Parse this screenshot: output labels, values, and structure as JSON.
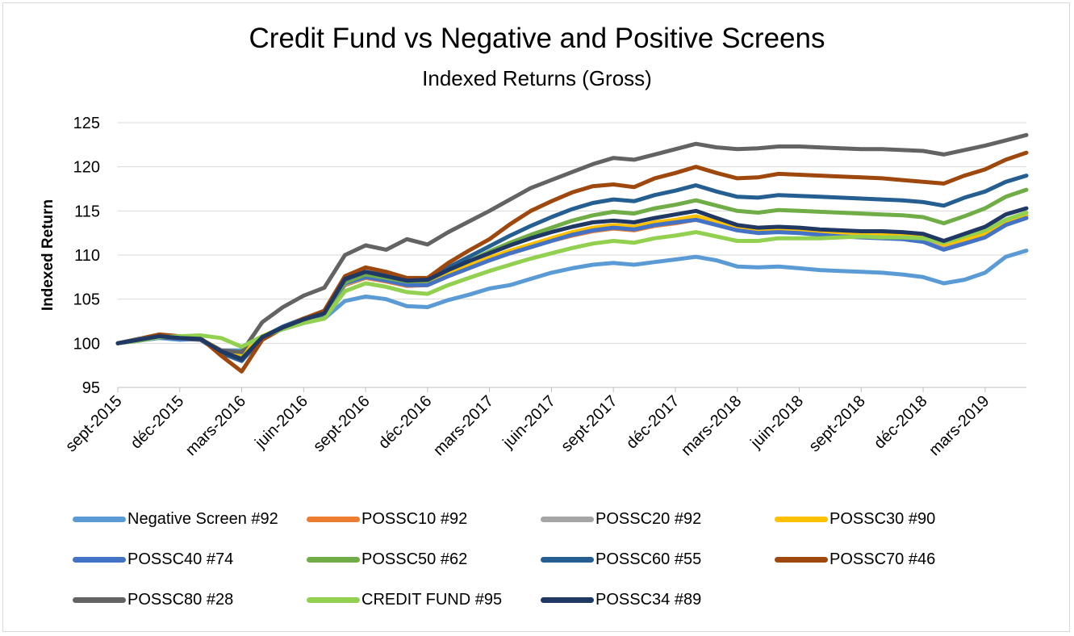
{
  "chart_data": {
    "type": "line",
    "title": "Credit Fund vs Negative and Positive Screens",
    "subtitle": "Indexed Returns (Gross)",
    "ylabel": "Indexed Return",
    "xlabel": "",
    "ylim": [
      95,
      125
    ],
    "yticks": [
      95,
      100,
      105,
      110,
      115,
      120,
      125
    ],
    "grid": true,
    "legend_position": "bottom",
    "x_tick_labels": [
      "sept-2015",
      "déc-2015",
      "mars-2016",
      "juin-2016",
      "sept-2016",
      "déc-2016",
      "mars-2017",
      "juin-2017",
      "sept-2017",
      "déc-2017",
      "mars-2018",
      "juin-2018",
      "sept-2018",
      "déc-2018",
      "mars-2019"
    ],
    "x": [
      "sept-2015",
      "oct-2015",
      "nov-2015",
      "déc-2015",
      "janv-2016",
      "févr-2016",
      "mars-2016",
      "avr-2016",
      "mai-2016",
      "juin-2016",
      "juil-2016",
      "août-2016",
      "sept-2016",
      "oct-2016",
      "nov-2016",
      "déc-2016",
      "janv-2017",
      "févr-2017",
      "mars-2017",
      "avr-2017",
      "mai-2017",
      "juin-2017",
      "juil-2017",
      "août-2017",
      "sept-2017",
      "oct-2017",
      "nov-2017",
      "déc-2017",
      "janv-2018",
      "févr-2018",
      "mars-2018",
      "avr-2018",
      "mai-2018",
      "juin-2018",
      "juil-2018",
      "août-2018",
      "sept-2018",
      "oct-2018",
      "nov-2018",
      "déc-2018",
      "janv-2019",
      "févr-2019",
      "mars-2019",
      "avr-2019",
      "mai-2019"
    ],
    "series": [
      {
        "name": "Negative Screen #92",
        "color": "#5b9bd5",
        "values": [
          100,
          100.3,
          100.6,
          100.4,
          100.5,
          99.2,
          99.2,
          100.8,
          101.6,
          102.3,
          102.8,
          104.8,
          105.3,
          105.0,
          104.2,
          104.1,
          104.9,
          105.5,
          106.2,
          106.6,
          107.3,
          108.0,
          108.5,
          108.9,
          109.1,
          108.9,
          109.2,
          109.5,
          109.8,
          109.4,
          108.7,
          108.6,
          108.7,
          108.5,
          108.3,
          108.2,
          108.1,
          108.0,
          107.8,
          107.5,
          106.8,
          107.2,
          108.0,
          109.8,
          110.5
        ]
      },
      {
        "name": "POSSC10 #92",
        "color": "#ed7d31",
        "values": [
          100,
          100.4,
          100.8,
          100.6,
          100.5,
          99.2,
          98.6,
          100.7,
          101.7,
          102.5,
          103.2,
          106.6,
          107.4,
          107.0,
          106.5,
          106.6,
          107.6,
          108.5,
          109.4,
          110.2,
          110.9,
          111.6,
          112.2,
          112.7,
          113.0,
          112.8,
          113.3,
          113.6,
          114.0,
          113.5,
          112.9,
          112.6,
          112.8,
          112.7,
          112.5,
          112.4,
          112.3,
          112.2,
          112.1,
          111.9,
          111.0,
          111.6,
          112.2,
          113.5,
          114.2
        ]
      },
      {
        "name": "POSSC20 #92",
        "color": "#a5a5a5",
        "values": [
          100,
          100.4,
          100.8,
          100.6,
          100.5,
          99.2,
          98.7,
          100.7,
          101.7,
          102.6,
          103.3,
          106.7,
          107.5,
          107.1,
          106.6,
          106.7,
          107.7,
          108.6,
          109.5,
          110.3,
          111.0,
          111.7,
          112.4,
          112.9,
          113.2,
          113.0,
          113.5,
          113.8,
          114.2,
          113.6,
          113.0,
          112.7,
          112.9,
          112.8,
          112.6,
          112.5,
          112.4,
          112.3,
          112.2,
          112.0,
          111.1,
          111.7,
          112.3,
          113.6,
          114.3
        ]
      },
      {
        "name": "POSSC30 #90",
        "color": "#ffc000",
        "values": [
          100,
          100.4,
          100.8,
          100.6,
          100.5,
          99.2,
          98.7,
          100.8,
          101.8,
          102.6,
          103.3,
          106.8,
          107.6,
          107.2,
          106.7,
          106.8,
          107.8,
          108.8,
          109.7,
          110.5,
          111.2,
          111.9,
          112.6,
          113.1,
          113.4,
          113.2,
          113.7,
          114.0,
          114.4,
          113.8,
          113.1,
          112.8,
          113.0,
          112.9,
          112.7,
          112.6,
          112.5,
          112.4,
          112.3,
          112.1,
          111.2,
          111.8,
          112.4,
          113.8,
          114.5
        ]
      },
      {
        "name": "POSSC40 #74",
        "color": "#4472c4",
        "values": [
          100,
          100.3,
          100.7,
          100.5,
          100.4,
          98.9,
          98.0,
          100.6,
          101.7,
          102.6,
          103.3,
          106.8,
          107.5,
          107.1,
          106.6,
          106.6,
          107.6,
          108.5,
          109.4,
          110.2,
          110.9,
          111.6,
          112.3,
          112.8,
          113.1,
          112.9,
          113.4,
          113.7,
          114.0,
          113.4,
          112.8,
          112.5,
          112.6,
          112.5,
          112.3,
          112.1,
          112.0,
          111.9,
          111.8,
          111.5,
          110.6,
          111.3,
          112.0,
          113.4,
          114.2
        ]
      },
      {
        "name": "POSSC50 #62",
        "color": "#70ad47",
        "values": [
          100,
          100.4,
          100.8,
          100.6,
          100.5,
          99.0,
          98.3,
          100.7,
          101.8,
          102.7,
          103.4,
          106.9,
          107.8,
          107.4,
          107.0,
          107.1,
          108.3,
          109.3,
          110.4,
          111.4,
          112.3,
          113.1,
          113.9,
          114.5,
          114.9,
          114.7,
          115.3,
          115.7,
          116.2,
          115.6,
          115.0,
          114.8,
          115.1,
          115.0,
          114.9,
          114.8,
          114.7,
          114.6,
          114.5,
          114.3,
          113.6,
          114.4,
          115.3,
          116.6,
          117.4
        ]
      },
      {
        "name": "POSSC60 #55",
        "color": "#255e91",
        "values": [
          100,
          100.4,
          100.8,
          100.6,
          100.5,
          98.9,
          98.0,
          100.7,
          101.9,
          102.8,
          103.5,
          107.2,
          108.1,
          107.7,
          107.2,
          107.2,
          108.6,
          109.8,
          111.0,
          112.2,
          113.3,
          114.3,
          115.2,
          115.9,
          116.3,
          116.1,
          116.8,
          117.3,
          117.9,
          117.2,
          116.6,
          116.5,
          116.8,
          116.7,
          116.6,
          116.5,
          116.4,
          116.3,
          116.2,
          116.0,
          115.6,
          116.5,
          117.2,
          118.3,
          119.0
        ]
      },
      {
        "name": "POSSC70 #46",
        "color": "#9e480e",
        "values": [
          100,
          100.5,
          101.0,
          100.8,
          100.6,
          98.6,
          96.8,
          100.4,
          101.7,
          102.8,
          103.7,
          107.6,
          108.6,
          108.1,
          107.4,
          107.4,
          109.1,
          110.5,
          111.8,
          113.5,
          115.0,
          116.1,
          117.1,
          117.8,
          118.0,
          117.7,
          118.7,
          119.3,
          120.0,
          119.3,
          118.7,
          118.8,
          119.2,
          119.1,
          119.0,
          118.9,
          118.8,
          118.7,
          118.5,
          118.3,
          118.1,
          119.0,
          119.7,
          120.8,
          121.6
        ]
      },
      {
        "name": "POSSC80 #28",
        "color": "#636363",
        "values": [
          100,
          100.5,
          100.7,
          100.6,
          100.4,
          99.2,
          99.0,
          102.4,
          104.1,
          105.4,
          106.3,
          110.0,
          111.1,
          110.6,
          111.8,
          111.2,
          112.6,
          113.8,
          115.0,
          116.3,
          117.6,
          118.5,
          119.4,
          120.3,
          121.0,
          120.8,
          121.4,
          122.0,
          122.6,
          122.2,
          122.0,
          122.1,
          122.3,
          122.3,
          122.2,
          122.1,
          122.0,
          122.0,
          121.9,
          121.8,
          121.4,
          121.9,
          122.4,
          123.0,
          123.6
        ]
      },
      {
        "name": "CREDIT FUND #95",
        "color": "#92d050",
        "values": [
          100,
          100.3,
          100.7,
          100.8,
          100.9,
          100.6,
          99.6,
          100.8,
          101.6,
          102.3,
          102.8,
          105.9,
          106.8,
          106.4,
          105.8,
          105.6,
          106.6,
          107.4,
          108.2,
          108.9,
          109.6,
          110.2,
          110.8,
          111.3,
          111.6,
          111.4,
          111.9,
          112.2,
          112.6,
          112.1,
          111.6,
          111.6,
          111.9,
          111.9,
          111.9,
          112.0,
          112.1,
          112.0,
          112.0,
          111.9,
          111.4,
          112.1,
          112.8,
          114.0,
          114.8
        ]
      },
      {
        "name": "POSSC34 #89",
        "color": "#203864",
        "values": [
          100,
          100.4,
          100.8,
          100.6,
          100.5,
          99.1,
          98.2,
          100.7,
          101.8,
          102.7,
          103.4,
          107.3,
          108.1,
          107.6,
          107.1,
          107.2,
          108.3,
          109.3,
          110.2,
          111.1,
          111.9,
          112.6,
          113.2,
          113.7,
          113.9,
          113.7,
          114.2,
          114.6,
          115.0,
          114.2,
          113.4,
          113.1,
          113.2,
          113.1,
          112.9,
          112.8,
          112.7,
          112.7,
          112.6,
          112.4,
          111.6,
          112.4,
          113.2,
          114.6,
          115.3
        ]
      }
    ]
  }
}
